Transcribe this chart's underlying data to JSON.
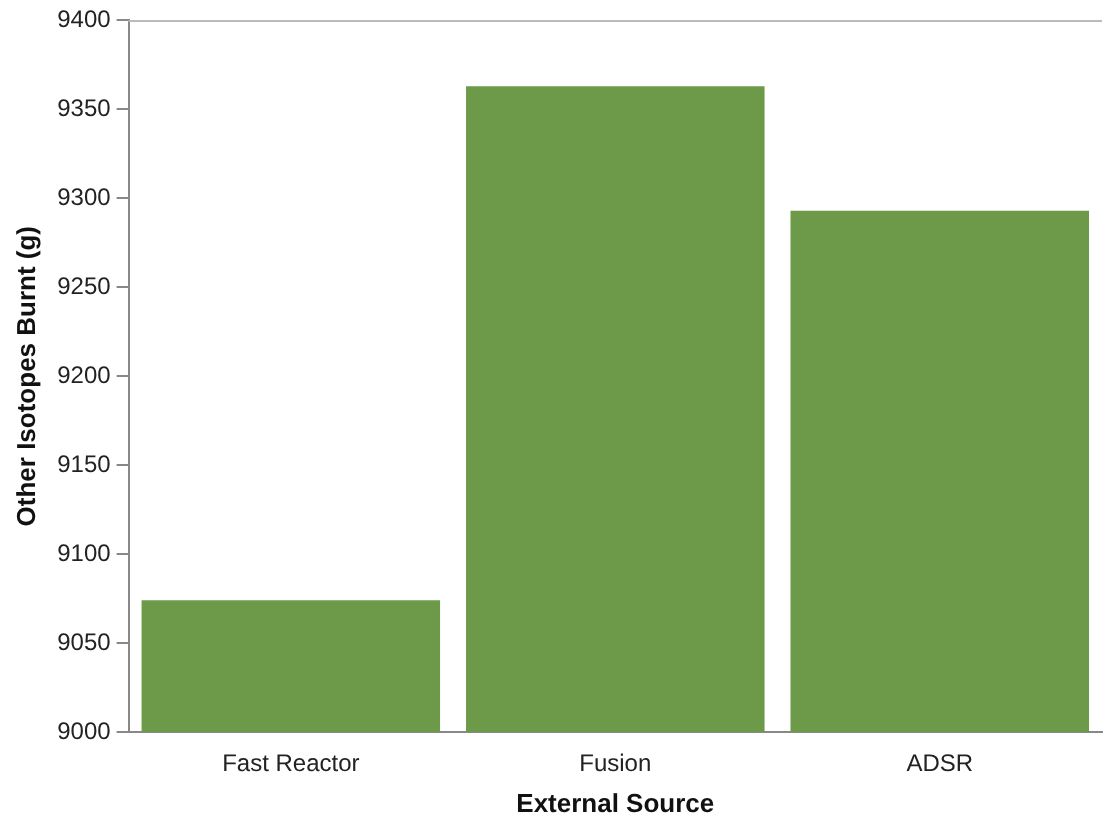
{
  "chart_data": {
    "type": "bar",
    "xlabel": "External Source",
    "ylabel": "Other Isotopes Burnt (g)",
    "categories": [
      "Fast Reactor",
      "Fusion",
      "ADSR"
    ],
    "values": [
      9074,
      9363,
      9293
    ],
    "color": "#6c9a48",
    "ylim": [
      9000,
      9400
    ],
    "yticks": [
      9000,
      9050,
      9100,
      9150,
      9200,
      9250,
      9300,
      9350,
      9400
    ],
    "grid": false,
    "legend": false
  }
}
